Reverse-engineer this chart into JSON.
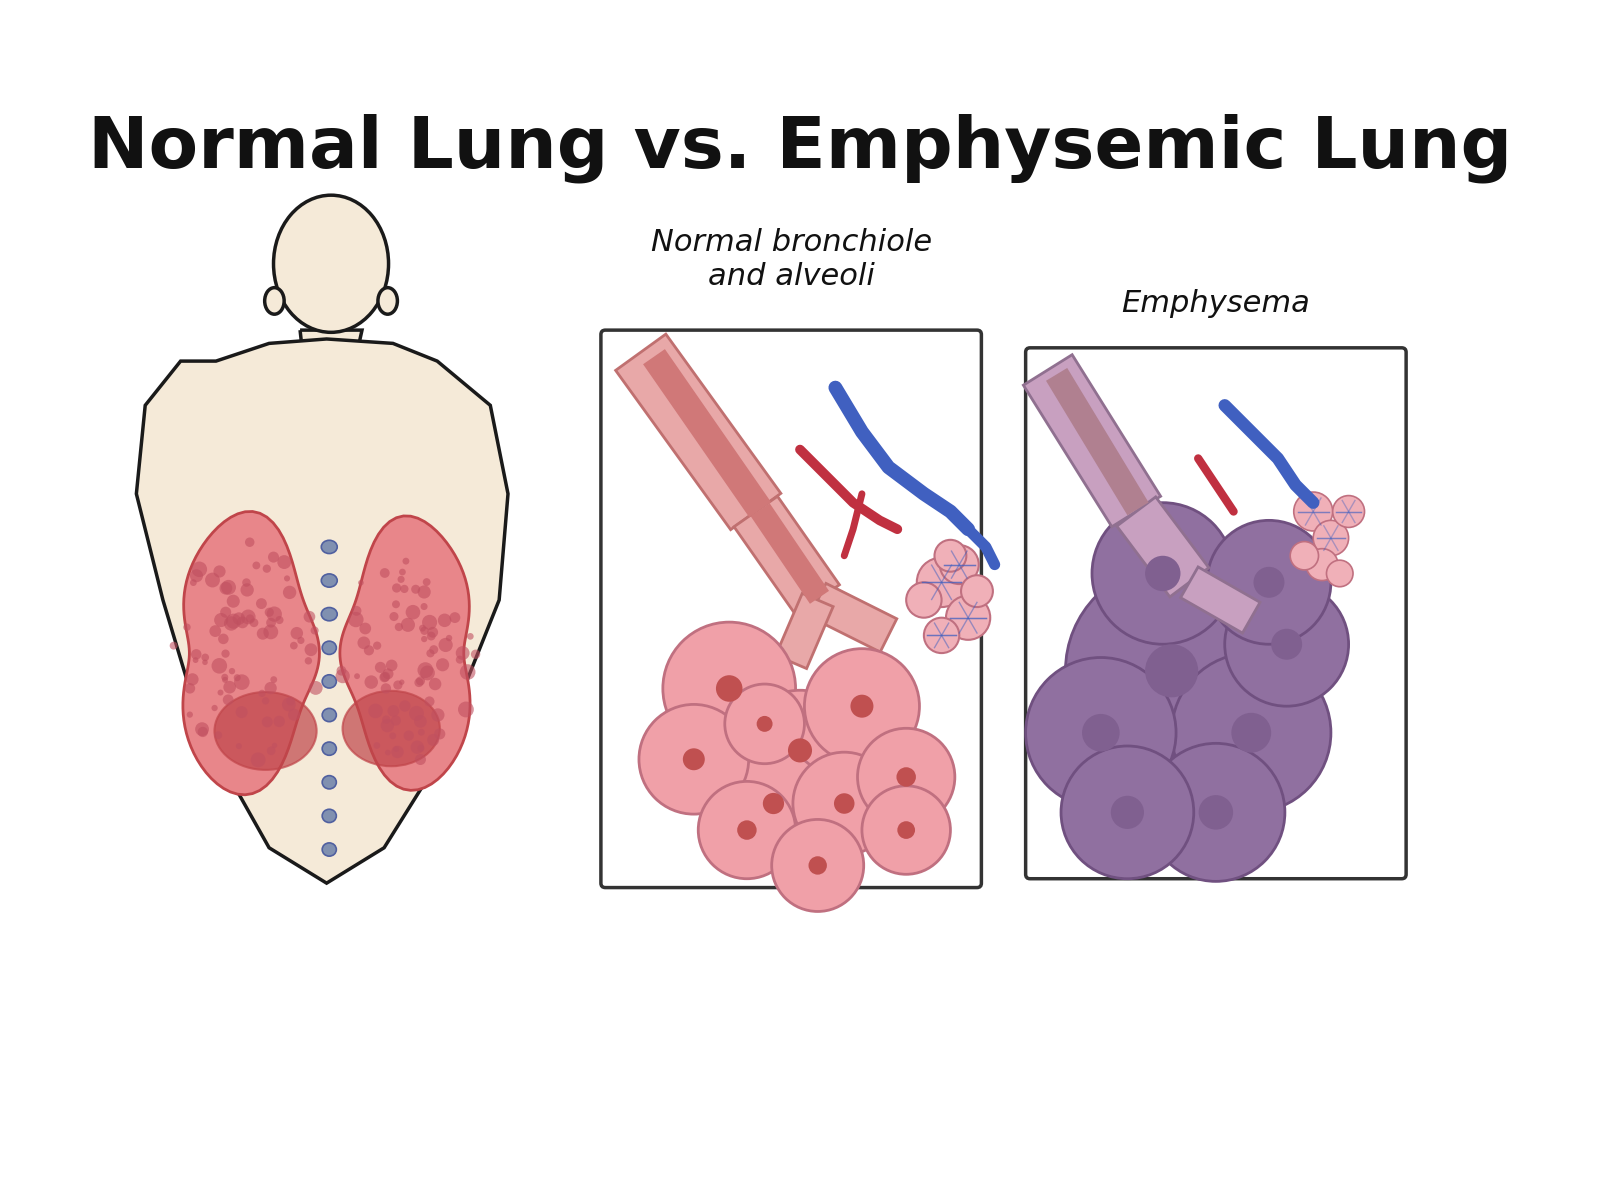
{
  "title": "Normal Lung vs. Emphysemic Lung",
  "title_fontsize": 52,
  "title_fontweight": "bold",
  "title_color": "#111111",
  "bg_color": "#ffffff",
  "skin_color": "#f5ead8",
  "skin_outline": "#1a1a1a",
  "lung_pink": "#e8868a",
  "lung_dark_red": "#c0454a",
  "lung_spot": "#c05060",
  "bronchiole_pink": "#e8a0a0",
  "bronchiole_dark": "#c86060",
  "blue_vessel": "#4060c0",
  "red_vessel": "#c03040",
  "alveoli_fill": "#f0a0a8",
  "alveoli_outline": "#c07080",
  "emphysema_fill": "#9070a0",
  "emphysema_outline": "#705080",
  "spine_color": "#8090b0",
  "box_color": "#333333",
  "label_normal": "Normal bronchiole\nand alveoli",
  "label_emphysema": "Emphysema",
  "label_fontsize": 22,
  "label_style": "italic"
}
